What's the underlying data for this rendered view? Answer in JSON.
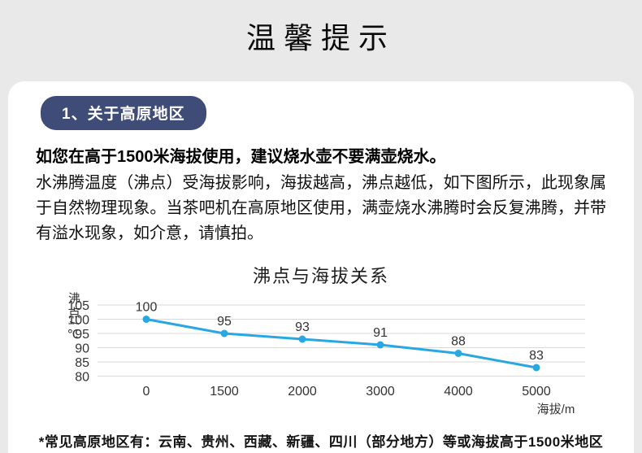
{
  "page": {
    "title": "温馨提示"
  },
  "card": {
    "badge": "1、关于高原地区",
    "intro_bold": "如您在高于1500米海拔使用，建议烧水壶不要满壶烧水。",
    "body": "水沸腾温度（沸点）受海拔影响，海拔越高，沸点越低，如下图所示，此现象属于自然物理现象。当茶吧机在高原地区使用，满壶烧水沸腾时会反复沸腾，并带有溢水现象，如介意，请慎拍。",
    "footnote": "*常见高原地区有：云南、贵州、西藏、新疆、四川（部分地方）等或海拔高于1500米地区"
  },
  "chart_data": {
    "type": "line",
    "title": "沸点与海拔关系",
    "categories": [
      "0",
      "1500",
      "2000",
      "3000",
      "4000",
      "5000"
    ],
    "values": [
      100,
      95,
      93,
      91,
      88,
      83
    ],
    "xlabel": "海拔/m",
    "ylabel": "沸点/℃",
    "yticks": [
      105,
      100,
      95,
      90,
      85,
      80
    ],
    "ylim": [
      80,
      105
    ],
    "grid": true,
    "legend": false,
    "line_color": "#29a7e3",
    "grid_color": "#d9d9d9",
    "label_color": "#333333"
  },
  "colors": {
    "page_bg": "#e9e9e9",
    "card_bg": "#ffffff",
    "badge_bg": "#3e4c77",
    "accent_line": "#29a7e3"
  }
}
